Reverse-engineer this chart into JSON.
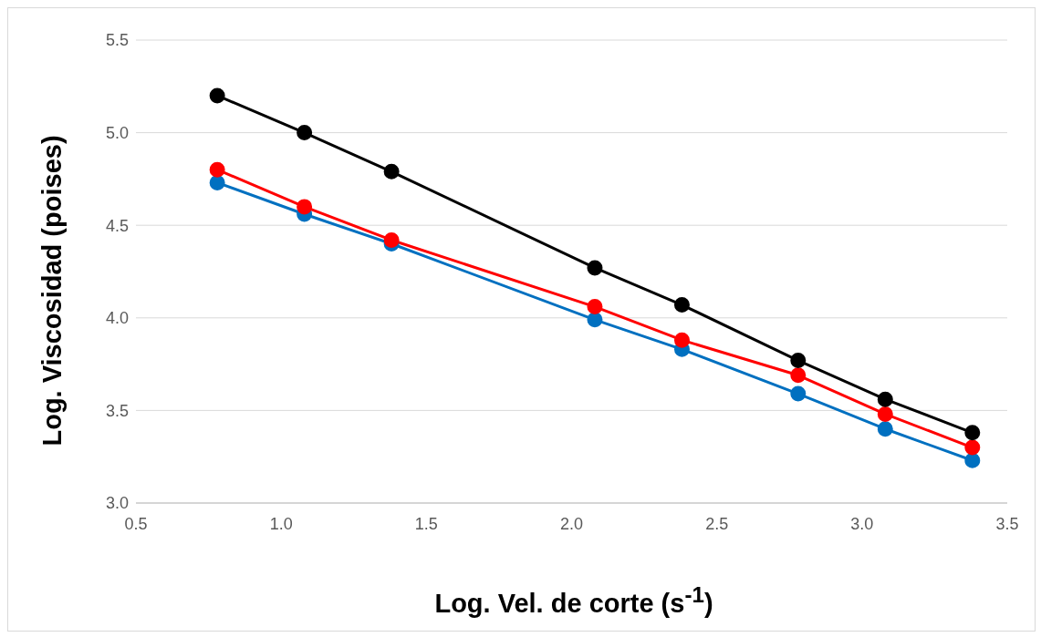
{
  "chart_data": {
    "type": "line",
    "xlabel": "Log. Vel. de corte (s$^{-1}$)",
    "ylabel": "Log. Viscosidad (poises)",
    "x": [
      0.78,
      1.08,
      1.38,
      2.08,
      2.38,
      2.78,
      3.08,
      3.38
    ],
    "series": [
      {
        "color": "#000000",
        "values": [
          5.2,
          5.0,
          4.79,
          4.27,
          4.07,
          3.77,
          3.56,
          3.38
        ]
      },
      {
        "color": "#ff0000",
        "values": [
          4.8,
          4.6,
          4.42,
          4.06,
          3.88,
          3.69,
          3.48,
          3.3
        ]
      },
      {
        "color": "#0070c0",
        "values": [
          4.73,
          4.56,
          4.4,
          3.99,
          3.83,
          3.59,
          3.4,
          3.23
        ]
      }
    ],
    "xlim": [
      0.5,
      3.5
    ],
    "xticks": [
      {
        "value": 0.5,
        "label": "0.5"
      },
      {
        "value": 1,
        "label": "1.0"
      },
      {
        "value": 1.5,
        "label": "1.5"
      },
      {
        "value": 2,
        "label": "2.0"
      },
      {
        "value": 2.5,
        "label": "2.5"
      },
      {
        "value": 3,
        "label": "3.0"
      },
      {
        "value": 3.5,
        "label": "3.5"
      }
    ],
    "ylim": [
      3,
      5.5
    ],
    "yticks": [
      {
        "value": 3,
        "label": "3.0"
      },
      {
        "value": 3.5,
        "label": "3.5"
      },
      {
        "value": 4,
        "label": "4.0"
      },
      {
        "value": 4.5,
        "label": "4.5"
      },
      {
        "value": 5,
        "label": "5.0"
      },
      {
        "value": 5.5,
        "label": "5.5"
      }
    ],
    "grid": "y",
    "marker": "circle",
    "line_style": "solid"
  }
}
